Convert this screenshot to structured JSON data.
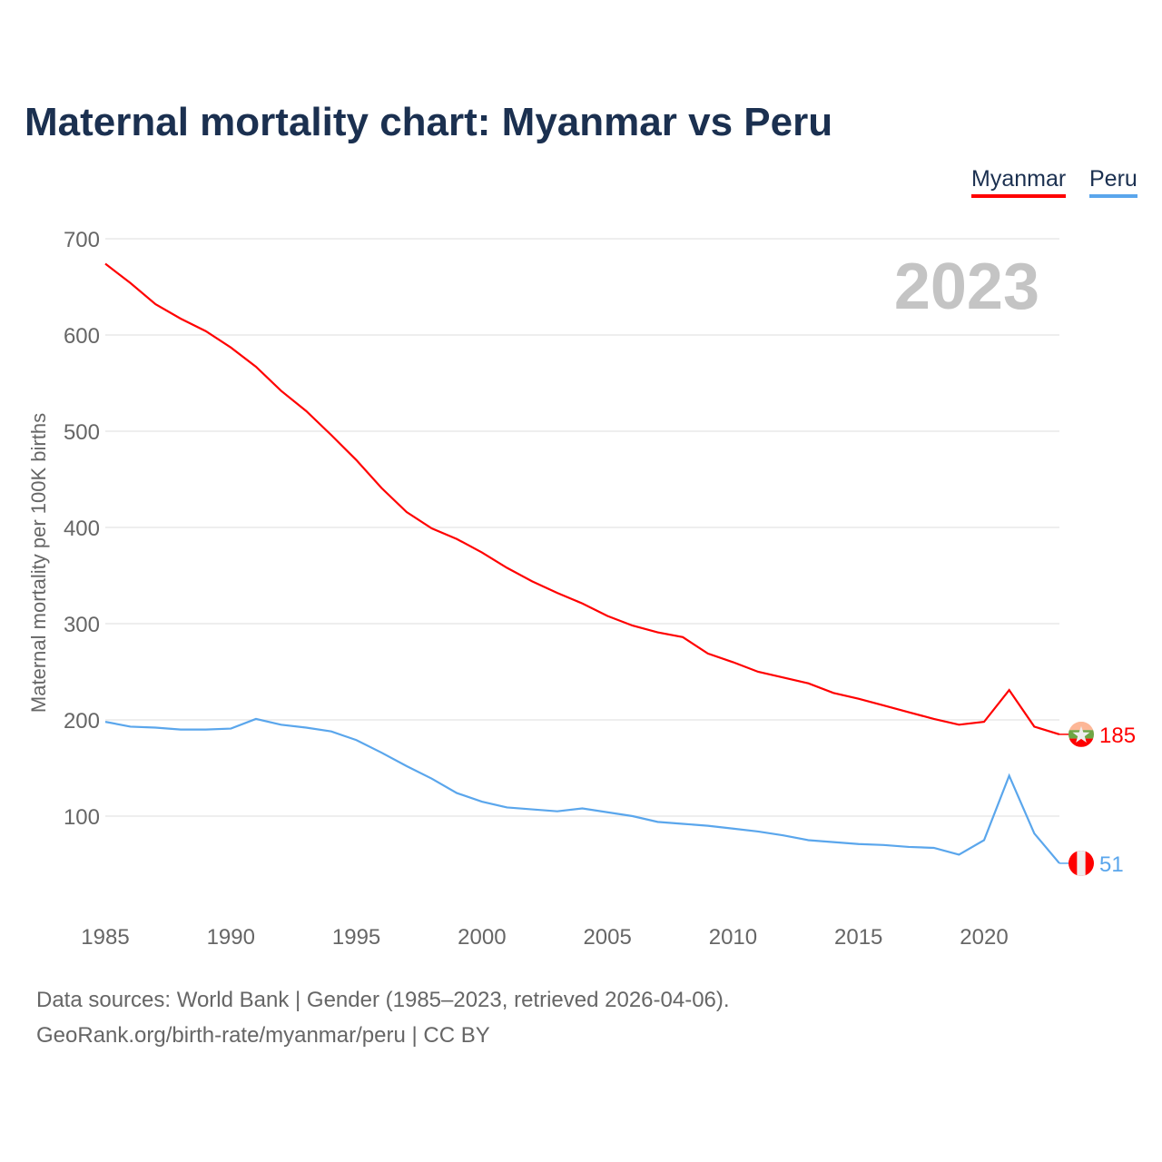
{
  "title": "Maternal mortality chart: Myanmar vs Peru",
  "footer": {
    "line1": "Data sources: World Bank | Gender (1985–2023, retrieved 2026-04-06).",
    "line2": "GeoRank.org/birth-rate/myanmar/peru | CC BY"
  },
  "chart_data": {
    "type": "line",
    "title": "Maternal mortality chart: Myanmar vs Peru",
    "xlabel": "",
    "ylabel": "Maternal mortality per 100K births",
    "year_watermark": "2023",
    "xlim": [
      1985,
      2023
    ],
    "ylim": [
      0,
      700
    ],
    "x_ticks": [
      "1985",
      "1990",
      "1995",
      "2000",
      "2005",
      "2010",
      "2015",
      "2020"
    ],
    "y_ticks": [
      "100",
      "200",
      "300",
      "400",
      "500",
      "600",
      "700"
    ],
    "grid": true,
    "legend_position": "top-right",
    "x": [
      1985,
      1986,
      1987,
      1988,
      1989,
      1990,
      1991,
      1992,
      1993,
      1994,
      1995,
      1996,
      1997,
      1998,
      1999,
      2000,
      2001,
      2002,
      2003,
      2004,
      2005,
      2006,
      2007,
      2008,
      2009,
      2010,
      2011,
      2012,
      2013,
      2014,
      2015,
      2016,
      2017,
      2018,
      2019,
      2020,
      2021,
      2022,
      2023
    ],
    "series": [
      {
        "name": "Myanmar",
        "color": "#ff0000",
        "end_label": "185",
        "values": [
          674,
          654,
          632,
          617,
          604,
          587,
          567,
          542,
          521,
          496,
          470,
          441,
          416,
          399,
          388,
          374,
          358,
          344,
          332,
          321,
          308,
          298,
          291,
          286,
          269,
          260,
          250,
          244,
          238,
          228,
          222,
          215,
          208,
          201,
          195,
          198,
          231,
          193,
          185
        ]
      },
      {
        "name": "Peru",
        "color": "#5aa6ec",
        "end_label": "51",
        "values": [
          198,
          193,
          192,
          190,
          190,
          191,
          201,
          195,
          192,
          188,
          179,
          166,
          152,
          139,
          124,
          115,
          109,
          107,
          105,
          108,
          104,
          100,
          94,
          92,
          90,
          87,
          84,
          80,
          75,
          73,
          71,
          70,
          68,
          67,
          60,
          75,
          142,
          82,
          51
        ]
      }
    ]
  }
}
